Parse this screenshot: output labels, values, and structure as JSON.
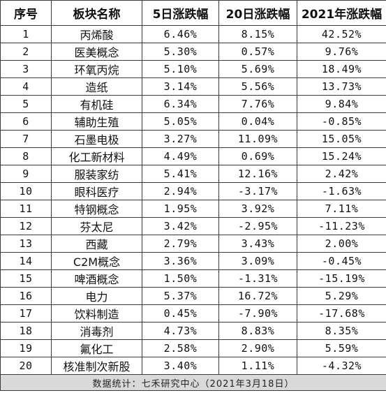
{
  "table": {
    "headers": [
      "序号",
      "板块名称",
      "5日涨跌幅",
      "20日涨跌幅",
      "2021年涨跌幅"
    ],
    "rows": [
      [
        "1",
        "丙烯酸",
        "6.46%",
        "8.15%",
        "42.52%"
      ],
      [
        "2",
        "医美概念",
        "5.30%",
        "0.57%",
        "9.76%"
      ],
      [
        "3",
        "环氧丙烷",
        "5.10%",
        "5.69%",
        "18.49%"
      ],
      [
        "4",
        "造纸",
        "3.14%",
        "5.56%",
        "13.73%"
      ],
      [
        "5",
        "有机硅",
        "6.34%",
        "7.76%",
        "9.84%"
      ],
      [
        "6",
        "辅助生殖",
        "5.05%",
        "0.04%",
        "-0.85%"
      ],
      [
        "7",
        "石墨电极",
        "3.27%",
        "11.09%",
        "15.05%"
      ],
      [
        "8",
        "化工新材料",
        "4.49%",
        "0.69%",
        "15.24%"
      ],
      [
        "9",
        "服装家纺",
        "5.41%",
        "12.16%",
        "2.42%"
      ],
      [
        "10",
        "眼科医疗",
        "2.94%",
        "-3.17%",
        "-1.63%"
      ],
      [
        "11",
        "特钢概念",
        "1.95%",
        "3.92%",
        "7.11%"
      ],
      [
        "12",
        "芬太尼",
        "3.42%",
        "-2.95%",
        "-11.23%"
      ],
      [
        "13",
        "西藏",
        "2.79%",
        "3.43%",
        "2.00%"
      ],
      [
        "14",
        "C2M概念",
        "3.36%",
        "3.09%",
        "-0.45%"
      ],
      [
        "15",
        "啤酒概念",
        "1.50%",
        "-1.31%",
        "-15.19%"
      ],
      [
        "16",
        "电力",
        "5.37%",
        "16.72%",
        "5.29%"
      ],
      [
        "17",
        "饮料制造",
        "0.45%",
        "-7.90%",
        "-17.68%"
      ],
      [
        "18",
        "消毒剂",
        "4.73%",
        "8.83%",
        "8.35%"
      ],
      [
        "19",
        "氟化工",
        "2.58%",
        "2.90%",
        "5.59%"
      ],
      [
        "20",
        "核准制次新股",
        "3.40%",
        "1.11%",
        "-4.32%"
      ]
    ],
    "footer": "数据统计：七禾研究中心（2021年3月18日）"
  }
}
